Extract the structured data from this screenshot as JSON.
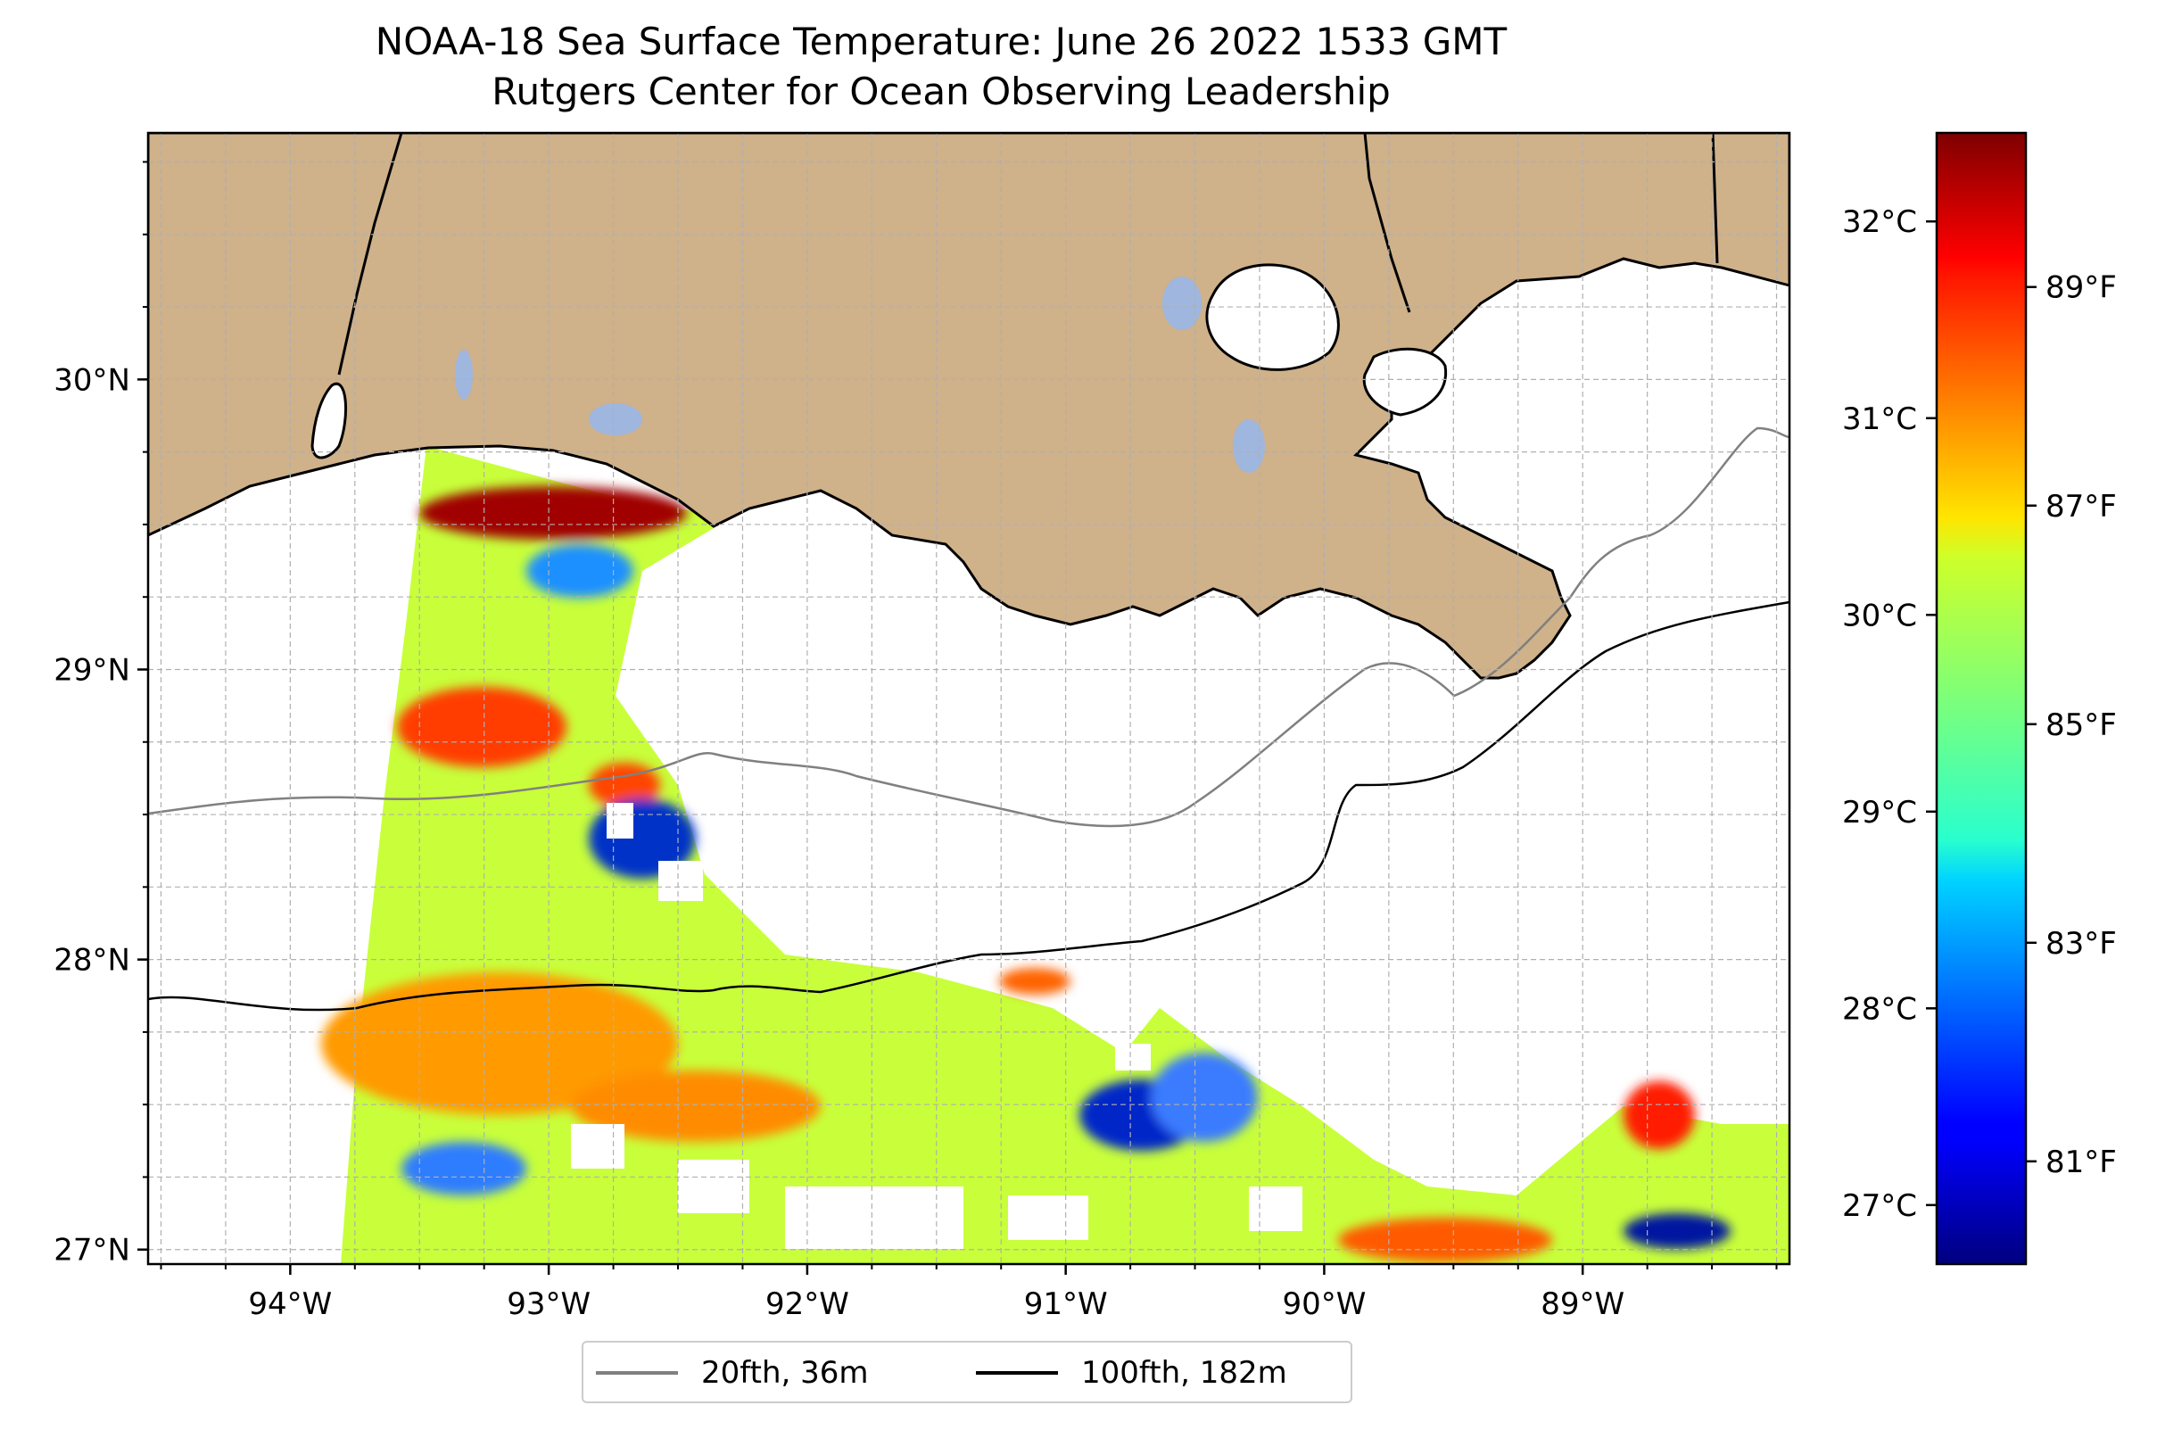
{
  "title": "NOAA-18 Sea Surface Temperature: June 26 2022 1533 GMT",
  "subtitle": "Rutgers Center for Ocean Observing Leadership",
  "colors": {
    "land": "#cfb18a",
    "lakes": "#9fb6de",
    "isobath_20fth": "#808080",
    "isobath_100fth": "#000000",
    "grid": "#b0b0b0"
  },
  "map": {
    "lon_range": [
      -94.55,
      -88.2
    ],
    "lat_range": [
      26.95,
      30.85
    ],
    "lon_ticks": [
      {
        "value": -94,
        "label": "94°W"
      },
      {
        "value": -93,
        "label": "93°W"
      },
      {
        "value": -92,
        "label": "92°W"
      },
      {
        "value": -91,
        "label": "91°W"
      },
      {
        "value": -90,
        "label": "90°W"
      },
      {
        "value": -89,
        "label": "89°W"
      }
    ],
    "lat_ticks": [
      {
        "value": 27,
        "label": "27°N"
      },
      {
        "value": 28,
        "label": "28°N"
      },
      {
        "value": 29,
        "label": "29°N"
      },
      {
        "value": 30,
        "label": "30°N"
      }
    ],
    "grid": true
  },
  "colorbar": {
    "colormap": "jet",
    "range_c": [
      26.7,
      32.45
    ],
    "celsius_ticks": [
      {
        "value": 27,
        "label": "27°C"
      },
      {
        "value": 28,
        "label": "28°C"
      },
      {
        "value": 29,
        "label": "29°C"
      },
      {
        "value": 30,
        "label": "30°C"
      },
      {
        "value": 31,
        "label": "31°C"
      },
      {
        "value": 32,
        "label": "32°C"
      }
    ],
    "fahrenheit_ticks": [
      {
        "value": 81,
        "label": "81°F"
      },
      {
        "value": 83,
        "label": "83°F"
      },
      {
        "value": 85,
        "label": "85°F"
      },
      {
        "value": 87,
        "label": "87°F"
      },
      {
        "value": 89,
        "label": "89°F"
      }
    ]
  },
  "legend": {
    "items": [
      {
        "label": "20fth, 36m",
        "color": "#808080"
      },
      {
        "label": "100fth, 182m",
        "color": "#000000"
      }
    ]
  }
}
